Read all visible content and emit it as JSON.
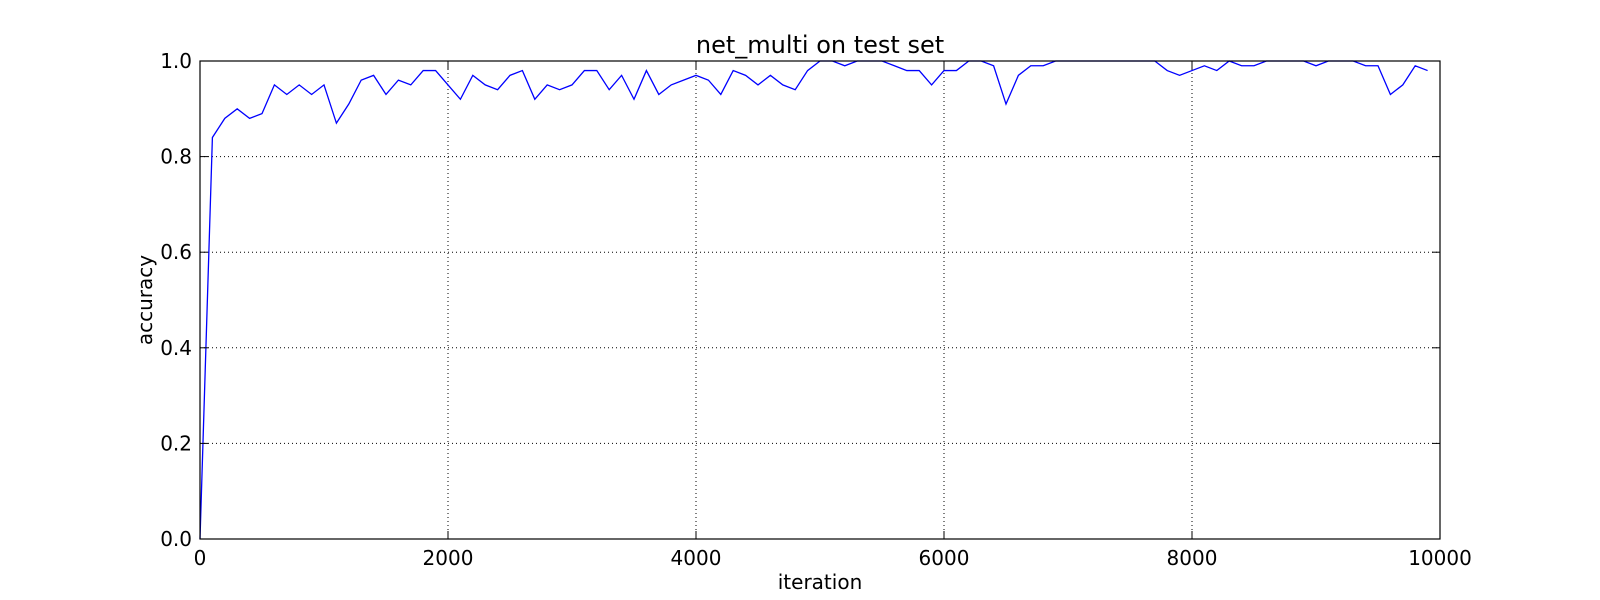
{
  "colors": {
    "line": "#0000ff",
    "axes": "#000000",
    "grid": "#000000",
    "background": "#ffffff"
  },
  "chart_data": {
    "type": "line",
    "title": "net_multi on test set",
    "xlabel": "iteration",
    "ylabel": "accuracy",
    "xlim": [
      0,
      10000
    ],
    "ylim": [
      0.0,
      1.0
    ],
    "x_ticks": [
      0,
      2000,
      4000,
      6000,
      8000,
      10000
    ],
    "x_tick_labels": [
      "0",
      "2000",
      "4000",
      "6000",
      "8000",
      "10000"
    ],
    "y_ticks": [
      0.0,
      0.2,
      0.4,
      0.6,
      0.8,
      1.0
    ],
    "y_tick_labels": [
      "0.0",
      "0.2",
      "0.4",
      "0.6",
      "0.8",
      "1.0"
    ],
    "grid": true,
    "grid_style": "dotted",
    "series": [
      {
        "color": "#0000ff",
        "x": [
          0,
          100,
          200,
          300,
          400,
          500,
          600,
          700,
          800,
          900,
          1000,
          1100,
          1200,
          1300,
          1400,
          1500,
          1600,
          1700,
          1800,
          1900,
          2000,
          2100,
          2200,
          2300,
          2400,
          2500,
          2600,
          2700,
          2800,
          2900,
          3000,
          3100,
          3200,
          3300,
          3400,
          3500,
          3600,
          3700,
          3800,
          3900,
          4000,
          4100,
          4200,
          4300,
          4400,
          4500,
          4600,
          4700,
          4800,
          4900,
          5000,
          5100,
          5200,
          5300,
          5400,
          5500,
          5600,
          5700,
          5800,
          5900,
          6000,
          6100,
          6200,
          6300,
          6400,
          6500,
          6600,
          6700,
          6800,
          6900,
          7000,
          7100,
          7200,
          7300,
          7400,
          7500,
          7600,
          7700,
          7800,
          7900,
          8000,
          8100,
          8200,
          8300,
          8400,
          8500,
          8600,
          8700,
          8800,
          8900,
          9000,
          9100,
          9200,
          9300,
          9400,
          9500,
          9600,
          9700,
          9800,
          9900
        ],
        "y": [
          0.0,
          0.84,
          0.88,
          0.9,
          0.88,
          0.89,
          0.95,
          0.93,
          0.95,
          0.93,
          0.95,
          0.87,
          0.91,
          0.96,
          0.97,
          0.93,
          0.96,
          0.95,
          0.98,
          0.98,
          0.95,
          0.92,
          0.97,
          0.95,
          0.94,
          0.97,
          0.98,
          0.92,
          0.95,
          0.94,
          0.95,
          0.98,
          0.98,
          0.94,
          0.97,
          0.92,
          0.98,
          0.93,
          0.95,
          0.96,
          0.97,
          0.96,
          0.93,
          0.98,
          0.97,
          0.95,
          0.97,
          0.95,
          0.94,
          0.98,
          1.0,
          1.0,
          0.99,
          1.0,
          1.0,
          1.0,
          0.99,
          0.98,
          0.98,
          0.95,
          0.98,
          0.98,
          1.0,
          1.0,
          0.99,
          0.91,
          0.97,
          0.99,
          0.99,
          1.0,
          1.0,
          1.0,
          1.0,
          1.0,
          1.0,
          1.0,
          1.0,
          1.0,
          0.98,
          0.97,
          0.98,
          0.99,
          0.98,
          1.0,
          0.99,
          0.99,
          1.0,
          1.0,
          1.0,
          1.0,
          0.99,
          1.0,
          1.0,
          1.0,
          0.99,
          0.99,
          0.93,
          0.95,
          0.99,
          0.98
        ]
      }
    ]
  }
}
